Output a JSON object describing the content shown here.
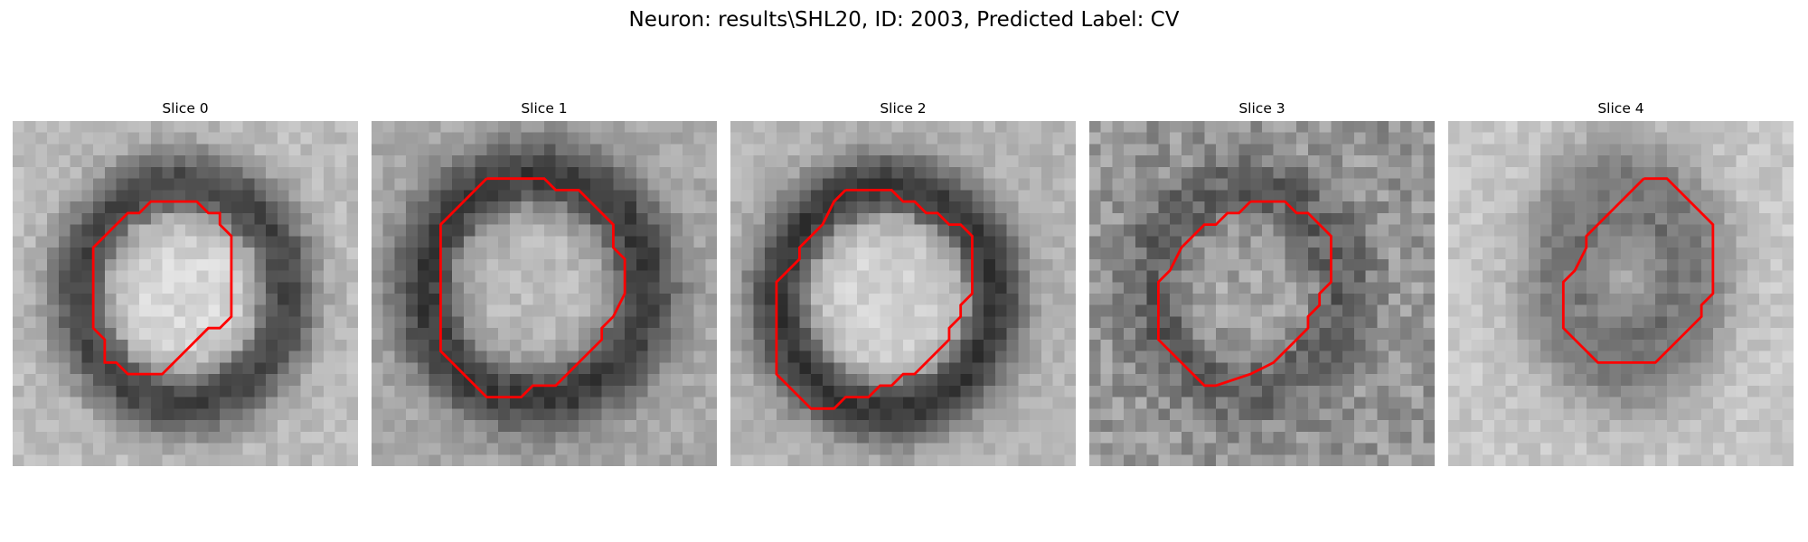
{
  "figure": {
    "title": "Neuron: results\\SHL20, ID: 2003, Predicted Label: CV"
  },
  "slices": [
    {
      "label": "Slice 0",
      "contour": [
        [
          13,
          7
        ],
        [
          16,
          7
        ],
        [
          17,
          8
        ],
        [
          18,
          8
        ],
        [
          18,
          9
        ],
        [
          19,
          10
        ],
        [
          19,
          17
        ],
        [
          18,
          18
        ],
        [
          17,
          18
        ],
        [
          14,
          21
        ],
        [
          13,
          22
        ],
        [
          10,
          22
        ],
        [
          9,
          21
        ],
        [
          8,
          21
        ],
        [
          8,
          19
        ],
        [
          7,
          18
        ],
        [
          7,
          16
        ],
        [
          7,
          11
        ],
        [
          8,
          10
        ],
        [
          9,
          9
        ],
        [
          10,
          8
        ],
        [
          11,
          8
        ],
        [
          12,
          7
        ]
      ]
    },
    {
      "label": "Slice 1",
      "contour": [
        [
          10,
          5
        ],
        [
          15,
          5
        ],
        [
          16,
          6
        ],
        [
          18,
          6
        ],
        [
          20,
          8
        ],
        [
          21,
          9
        ],
        [
          21,
          11
        ],
        [
          22,
          12
        ],
        [
          22,
          15
        ],
        [
          21,
          17
        ],
        [
          20,
          18
        ],
        [
          20,
          19
        ],
        [
          18,
          21
        ],
        [
          17,
          22
        ],
        [
          16,
          23
        ],
        [
          14,
          23
        ],
        [
          13,
          24
        ],
        [
          10,
          24
        ],
        [
          9,
          23
        ],
        [
          8,
          22
        ],
        [
          7,
          21
        ],
        [
          6,
          20
        ],
        [
          6,
          18
        ],
        [
          6,
          16
        ],
        [
          6,
          9
        ],
        [
          7,
          8
        ],
        [
          8,
          7
        ],
        [
          9,
          6
        ]
      ]
    },
    {
      "label": "Slice 2",
      "contour": [
        [
          10,
          6
        ],
        [
          14,
          6
        ],
        [
          15,
          7
        ],
        [
          16,
          7
        ],
        [
          17,
          8
        ],
        [
          18,
          8
        ],
        [
          19,
          9
        ],
        [
          20,
          9
        ],
        [
          21,
          10
        ],
        [
          21,
          15
        ],
        [
          20,
          16
        ],
        [
          20,
          17
        ],
        [
          19,
          18
        ],
        [
          19,
          19
        ],
        [
          16,
          22
        ],
        [
          15,
          22
        ],
        [
          14,
          23
        ],
        [
          13,
          23
        ],
        [
          12,
          24
        ],
        [
          10,
          24
        ],
        [
          9,
          25
        ],
        [
          7,
          25
        ],
        [
          6,
          24
        ],
        [
          5,
          23
        ],
        [
          4,
          22
        ],
        [
          4,
          20
        ],
        [
          4,
          14
        ],
        [
          5,
          13
        ],
        [
          6,
          12
        ],
        [
          6,
          11
        ],
        [
          7,
          10
        ],
        [
          8,
          9
        ],
        [
          9,
          7
        ]
      ]
    },
    {
      "label": "Slice 3",
      "contour": [
        [
          14,
          7
        ],
        [
          17,
          7
        ],
        [
          18,
          8
        ],
        [
          19,
          8
        ],
        [
          21,
          10
        ],
        [
          21,
          14
        ],
        [
          20,
          15
        ],
        [
          20,
          16
        ],
        [
          19,
          17
        ],
        [
          19,
          18
        ],
        [
          17,
          20
        ],
        [
          16,
          21
        ],
        [
          14,
          22
        ],
        [
          11,
          23
        ],
        [
          10,
          23
        ],
        [
          8,
          21
        ],
        [
          7,
          20
        ],
        [
          6,
          19
        ],
        [
          6,
          14
        ],
        [
          7,
          13
        ],
        [
          8,
          11
        ],
        [
          9,
          10
        ],
        [
          10,
          9
        ],
        [
          11,
          9
        ],
        [
          12,
          8
        ],
        [
          13,
          8
        ]
      ]
    },
    {
      "label": "Slice 4",
      "contour": [
        [
          17,
          5
        ],
        [
          19,
          5
        ],
        [
          20,
          6
        ],
        [
          21,
          7
        ],
        [
          22,
          8
        ],
        [
          23,
          9
        ],
        [
          23,
          15
        ],
        [
          22,
          16
        ],
        [
          22,
          17
        ],
        [
          19,
          20
        ],
        [
          18,
          21
        ],
        [
          13,
          21
        ],
        [
          12,
          20
        ],
        [
          11,
          19
        ],
        [
          10,
          18
        ],
        [
          10,
          14
        ],
        [
          11,
          13
        ],
        [
          12,
          11
        ],
        [
          12,
          10
        ],
        [
          14,
          8
        ],
        [
          15,
          7
        ],
        [
          16,
          6
        ]
      ]
    }
  ]
}
